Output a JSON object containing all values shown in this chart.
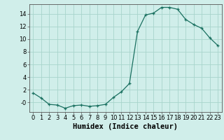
{
  "x": [
    0,
    1,
    2,
    3,
    4,
    5,
    6,
    7,
    8,
    9,
    10,
    11,
    12,
    13,
    14,
    15,
    16,
    17,
    18,
    19,
    20,
    21,
    22,
    23
  ],
  "y": [
    1.5,
    0.7,
    -0.3,
    -0.4,
    -0.9,
    -0.5,
    -0.4,
    -0.6,
    -0.5,
    -0.3,
    0.8,
    1.7,
    3.0,
    11.2,
    13.8,
    14.1,
    15.0,
    15.0,
    14.7,
    13.1,
    12.3,
    11.7,
    10.2,
    9.0
  ],
  "xlabel": "Humidex (Indice chaleur)",
  "xlim": [
    -0.5,
    23.5
  ],
  "ylim": [
    -1.5,
    15.5
  ],
  "yticks": [
    0,
    2,
    4,
    6,
    8,
    10,
    12,
    14
  ],
  "ytick_labels": [
    "-0",
    "2",
    "4",
    "6",
    "8",
    "10",
    "12",
    "14"
  ],
  "xticks": [
    0,
    1,
    2,
    3,
    4,
    5,
    6,
    7,
    8,
    9,
    10,
    11,
    12,
    13,
    14,
    15,
    16,
    17,
    18,
    19,
    20,
    21,
    22,
    23
  ],
  "line_color": "#1a7060",
  "marker": "+",
  "bg_color": "#d0eeea",
  "grid_color": "#a8d4cc",
  "tick_label_fontsize": 6,
  "xlabel_fontsize": 7.5,
  "lw": 0.9,
  "markersize": 3.5,
  "markeredgewidth": 0.9
}
